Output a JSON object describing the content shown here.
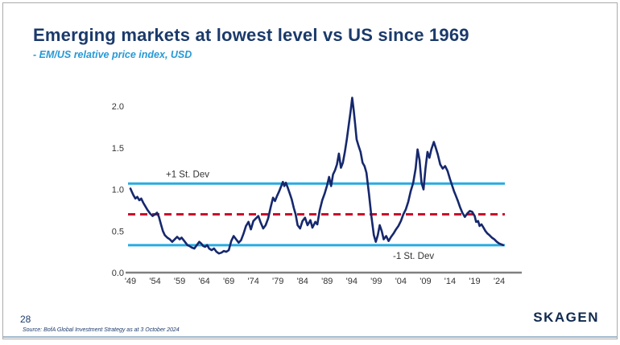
{
  "slide": {
    "title": "Emerging markets at lowest level vs US since 1969",
    "subtitle": "- EM/US relative price index, USD",
    "page_number": "28",
    "source": "Source: BofA Global Investment Strategy as at 3 October 2024",
    "logo": "SKAGEN"
  },
  "colors": {
    "title_navy": "#1b3a6b",
    "subtitle_blue": "#2699d6",
    "line_navy": "#16286d",
    "stdev_blue": "#29abe2",
    "mean_red": "#c8102e",
    "axis_gray": "#808080",
    "tick_text": "#333333"
  },
  "chart_data": {
    "type": "line",
    "title": "",
    "xlabel": "",
    "ylabel": "",
    "xlim": [
      1949,
      2025
    ],
    "ylim": [
      0,
      2.1
    ],
    "grid": false,
    "legend": "none",
    "x_ticks": [
      "'49",
      "'54",
      "'59",
      "'64",
      "'69",
      "'74",
      "'79",
      "'84",
      "'89",
      "'94",
      "'99",
      "'04",
      "'09",
      "'14",
      "'19",
      "'24"
    ],
    "x_tick_years": [
      1949,
      1954,
      1959,
      1964,
      1969,
      1974,
      1979,
      1984,
      1989,
      1994,
      1999,
      2004,
      2009,
      2014,
      2019,
      2024
    ],
    "y_ticks": [
      "0.0",
      "0.5",
      "1.0",
      "1.5",
      "2.0"
    ],
    "y_tick_values": [
      0,
      0.5,
      1.0,
      1.5,
      2.0
    ],
    "reference_lines": [
      {
        "label": "+1 St. Dev",
        "value": 1.07,
        "style": "solid",
        "color_key": "stdev_blue"
      },
      {
        "label": "",
        "value": 0.7,
        "style": "dashed",
        "color_key": "mean_red"
      },
      {
        "label": "-1 St. Dev",
        "value": 0.33,
        "style": "solid",
        "color_key": "stdev_blue"
      }
    ],
    "series": [
      {
        "name": "EM/US relative price index, USD",
        "points": [
          [
            1949.0,
            1.01
          ],
          [
            1949.3,
            0.97
          ],
          [
            1949.6,
            0.93
          ],
          [
            1950.0,
            0.89
          ],
          [
            1950.4,
            0.91
          ],
          [
            1950.8,
            0.87
          ],
          [
            1951.2,
            0.89
          ],
          [
            1951.6,
            0.84
          ],
          [
            1952.0,
            0.8
          ],
          [
            1952.5,
            0.75
          ],
          [
            1953.0,
            0.71
          ],
          [
            1953.5,
            0.68
          ],
          [
            1954.0,
            0.7
          ],
          [
            1954.4,
            0.72
          ],
          [
            1954.8,
            0.67
          ],
          [
            1955.2,
            0.58
          ],
          [
            1955.6,
            0.5
          ],
          [
            1956.0,
            0.45
          ],
          [
            1956.5,
            0.42
          ],
          [
            1957.0,
            0.4
          ],
          [
            1957.5,
            0.37
          ],
          [
            1958.0,
            0.4
          ],
          [
            1958.5,
            0.43
          ],
          [
            1959.0,
            0.4
          ],
          [
            1959.4,
            0.42
          ],
          [
            1959.8,
            0.39
          ],
          [
            1960.2,
            0.36
          ],
          [
            1960.6,
            0.33
          ],
          [
            1961.0,
            0.32
          ],
          [
            1961.5,
            0.3
          ],
          [
            1962.0,
            0.29
          ],
          [
            1962.5,
            0.33
          ],
          [
            1963.0,
            0.37
          ],
          [
            1963.4,
            0.35
          ],
          [
            1963.8,
            0.32
          ],
          [
            1964.2,
            0.31
          ],
          [
            1964.6,
            0.33
          ],
          [
            1965.0,
            0.29
          ],
          [
            1965.5,
            0.27
          ],
          [
            1966.0,
            0.29
          ],
          [
            1966.5,
            0.25
          ],
          [
            1967.0,
            0.23
          ],
          [
            1967.5,
            0.24
          ],
          [
            1968.0,
            0.26
          ],
          [
            1968.5,
            0.25
          ],
          [
            1969.0,
            0.27
          ],
          [
            1969.5,
            0.38
          ],
          [
            1970.0,
            0.44
          ],
          [
            1970.5,
            0.4
          ],
          [
            1971.0,
            0.36
          ],
          [
            1971.5,
            0.39
          ],
          [
            1972.0,
            0.47
          ],
          [
            1972.5,
            0.56
          ],
          [
            1973.0,
            0.61
          ],
          [
            1973.5,
            0.52
          ],
          [
            1974.0,
            0.62
          ],
          [
            1974.5,
            0.65
          ],
          [
            1975.0,
            0.68
          ],
          [
            1975.5,
            0.6
          ],
          [
            1976.0,
            0.53
          ],
          [
            1976.5,
            0.57
          ],
          [
            1977.0,
            0.65
          ],
          [
            1977.5,
            0.78
          ],
          [
            1978.0,
            0.9
          ],
          [
            1978.4,
            0.86
          ],
          [
            1978.8,
            0.92
          ],
          [
            1979.2,
            0.97
          ],
          [
            1979.6,
            1.03
          ],
          [
            1980.0,
            1.09
          ],
          [
            1980.3,
            1.04
          ],
          [
            1980.6,
            1.08
          ],
          [
            1981.0,
            1.02
          ],
          [
            1981.4,
            0.95
          ],
          [
            1981.8,
            0.88
          ],
          [
            1982.2,
            0.78
          ],
          [
            1982.6,
            0.7
          ],
          [
            1983.0,
            0.57
          ],
          [
            1983.5,
            0.53
          ],
          [
            1984.0,
            0.62
          ],
          [
            1984.5,
            0.66
          ],
          [
            1985.0,
            0.57
          ],
          [
            1985.6,
            0.63
          ],
          [
            1986.0,
            0.54
          ],
          [
            1986.6,
            0.61
          ],
          [
            1987.0,
            0.58
          ],
          [
            1987.5,
            0.75
          ],
          [
            1988.0,
            0.87
          ],
          [
            1988.5,
            0.95
          ],
          [
            1989.0,
            1.05
          ],
          [
            1989.4,
            1.15
          ],
          [
            1989.8,
            1.04
          ],
          [
            1990.2,
            1.18
          ],
          [
            1990.6,
            1.23
          ],
          [
            1991.0,
            1.3
          ],
          [
            1991.4,
            1.43
          ],
          [
            1991.8,
            1.26
          ],
          [
            1992.2,
            1.32
          ],
          [
            1992.6,
            1.45
          ],
          [
            1993.0,
            1.6
          ],
          [
            1993.4,
            1.78
          ],
          [
            1993.8,
            1.95
          ],
          [
            1994.1,
            2.1
          ],
          [
            1994.4,
            1.95
          ],
          [
            1994.7,
            1.78
          ],
          [
            1995.0,
            1.6
          ],
          [
            1995.4,
            1.52
          ],
          [
            1995.8,
            1.45
          ],
          [
            1996.2,
            1.32
          ],
          [
            1996.6,
            1.28
          ],
          [
            1997.0,
            1.2
          ],
          [
            1997.5,
            0.95
          ],
          [
            1998.0,
            0.68
          ],
          [
            1998.5,
            0.45
          ],
          [
            1998.9,
            0.37
          ],
          [
            1999.3,
            0.45
          ],
          [
            1999.7,
            0.57
          ],
          [
            2000.1,
            0.5
          ],
          [
            2000.5,
            0.4
          ],
          [
            2001.0,
            0.44
          ],
          [
            2001.5,
            0.38
          ],
          [
            2002.0,
            0.43
          ],
          [
            2002.5,
            0.47
          ],
          [
            2003.0,
            0.52
          ],
          [
            2003.5,
            0.56
          ],
          [
            2004.0,
            0.62
          ],
          [
            2004.5,
            0.7
          ],
          [
            2005.0,
            0.76
          ],
          [
            2005.5,
            0.85
          ],
          [
            2006.0,
            0.98
          ],
          [
            2006.5,
            1.08
          ],
          [
            2007.0,
            1.25
          ],
          [
            2007.4,
            1.48
          ],
          [
            2007.8,
            1.35
          ],
          [
            2008.2,
            1.08
          ],
          [
            2008.6,
            1.0
          ],
          [
            2009.0,
            1.25
          ],
          [
            2009.4,
            1.45
          ],
          [
            2009.8,
            1.38
          ],
          [
            2010.2,
            1.48
          ],
          [
            2010.7,
            1.57
          ],
          [
            2011.1,
            1.5
          ],
          [
            2011.5,
            1.42
          ],
          [
            2012.0,
            1.3
          ],
          [
            2012.5,
            1.25
          ],
          [
            2013.0,
            1.28
          ],
          [
            2013.5,
            1.22
          ],
          [
            2014.0,
            1.12
          ],
          [
            2014.4,
            1.05
          ],
          [
            2014.8,
            0.98
          ],
          [
            2015.2,
            0.92
          ],
          [
            2015.6,
            0.86
          ],
          [
            2016.0,
            0.79
          ],
          [
            2016.5,
            0.72
          ],
          [
            2017.0,
            0.67
          ],
          [
            2017.5,
            0.71
          ],
          [
            2018.0,
            0.74
          ],
          [
            2018.5,
            0.73
          ],
          [
            2019.0,
            0.68
          ],
          [
            2019.3,
            0.61
          ],
          [
            2019.7,
            0.62
          ],
          [
            2020.0,
            0.56
          ],
          [
            2020.4,
            0.58
          ],
          [
            2020.8,
            0.54
          ],
          [
            2021.2,
            0.5
          ],
          [
            2021.6,
            0.47
          ],
          [
            2022.0,
            0.45
          ],
          [
            2022.5,
            0.42
          ],
          [
            2023.0,
            0.4
          ],
          [
            2023.5,
            0.37
          ],
          [
            2024.0,
            0.35
          ],
          [
            2024.4,
            0.34
          ],
          [
            2024.8,
            0.33
          ]
        ]
      }
    ]
  }
}
